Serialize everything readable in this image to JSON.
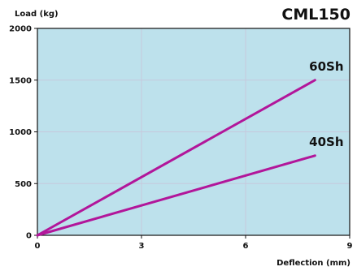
{
  "chart_data": {
    "type": "line",
    "title": "CML150",
    "xlabel": "Deflection (mm)",
    "ylabel": "Load (kg)",
    "xlim": [
      0,
      9
    ],
    "ylim": [
      0,
      2000
    ],
    "x_ticks": [
      "0",
      "3",
      "6",
      "9"
    ],
    "y_ticks": [
      "0",
      "500",
      "1000",
      "1500",
      "2000"
    ],
    "grid": true,
    "legend": "inline-labels",
    "series": [
      {
        "name": "60Sh",
        "x": [
          0,
          8
        ],
        "y": [
          0,
          1500
        ]
      },
      {
        "name": "40Sh",
        "x": [
          0,
          8
        ],
        "y": [
          0,
          770
        ]
      }
    ],
    "colors": {
      "plot_background": "#bde1ec",
      "grid": "#c6c9dd",
      "line": "#b2169a",
      "axis": "#111111"
    }
  }
}
